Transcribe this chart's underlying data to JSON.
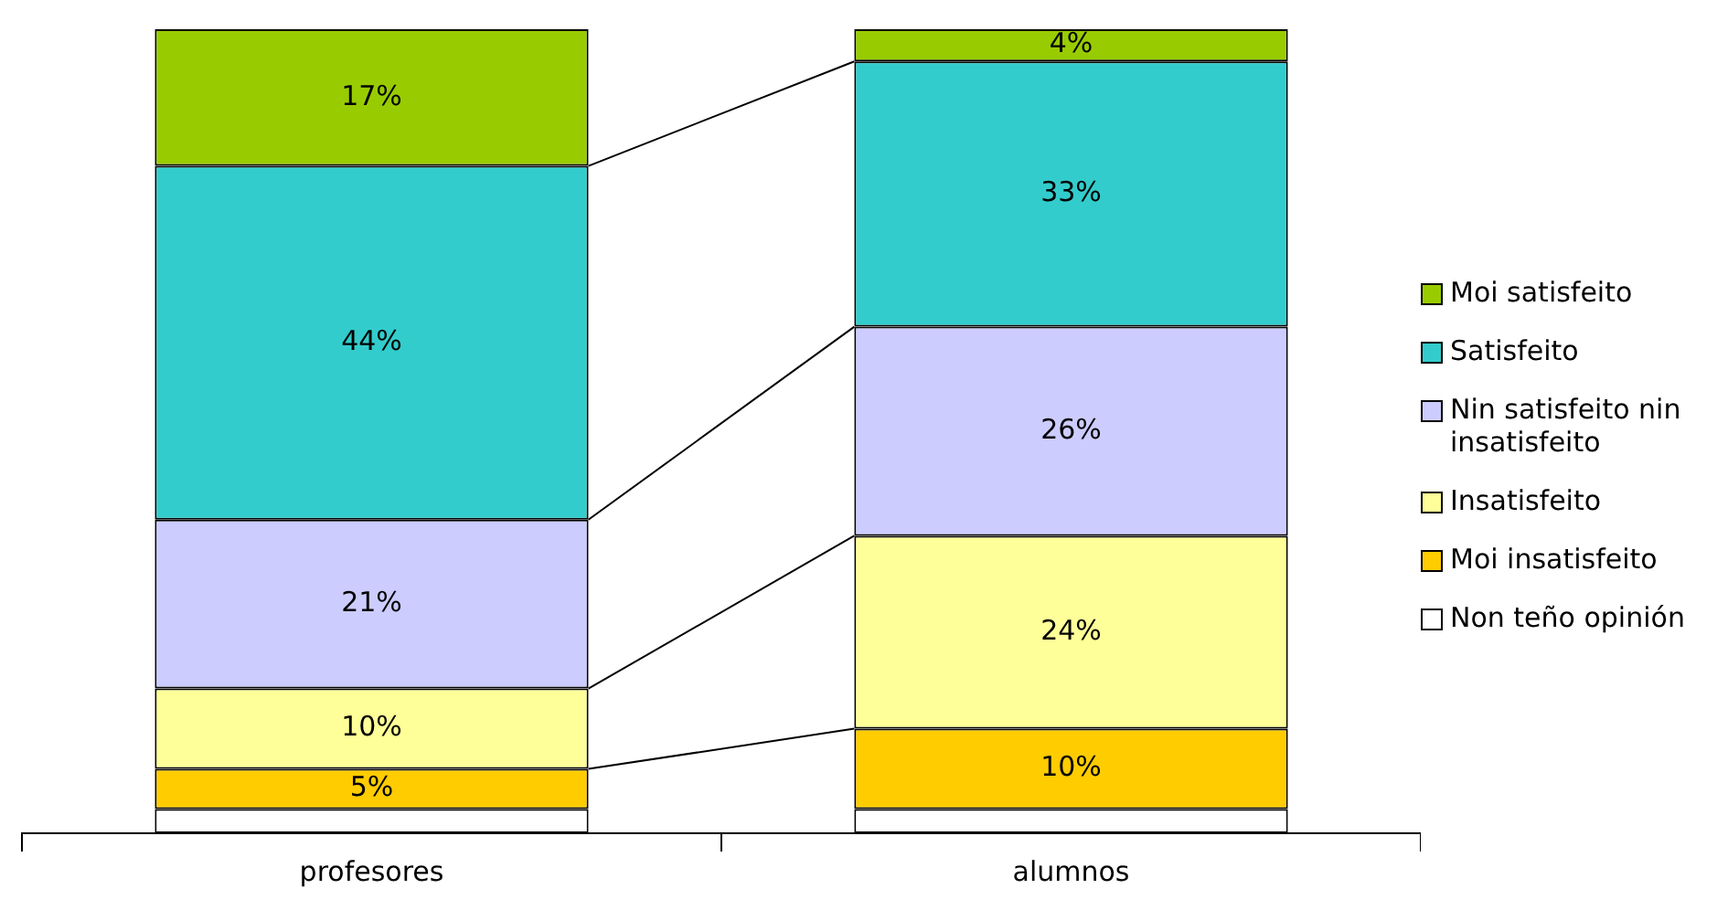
{
  "chart_data": {
    "type": "bar",
    "stacked": true,
    "categories": [
      "profesores",
      "alumnos"
    ],
    "series": [
      {
        "name": "Non teño opinión",
        "color": "#ffffff",
        "values": [
          3,
          3
        ],
        "value_labels": [
          null,
          null
        ]
      },
      {
        "name": "Moi insatisfeito",
        "color": "#ffcc00",
        "values": [
          5,
          10
        ],
        "value_labels": [
          "5%",
          "10%"
        ]
      },
      {
        "name": "Insatisfeito",
        "color": "#ffff99",
        "values": [
          10,
          24
        ],
        "value_labels": [
          "10%",
          "24%"
        ]
      },
      {
        "name": "Nin satisfeito nin insatisfeito",
        "color": "#ccccff",
        "values": [
          21,
          26
        ],
        "value_labels": [
          "21%",
          "26%"
        ]
      },
      {
        "name": "Satisfeito",
        "color": "#33cccc",
        "values": [
          44,
          33
        ],
        "value_labels": [
          "44%",
          "33%"
        ]
      },
      {
        "name": "Moi satisfeito",
        "color": "#99cc00",
        "values": [
          17,
          4
        ],
        "value_labels": [
          "17%",
          "4%"
        ]
      }
    ],
    "ylim": [
      0,
      100
    ],
    "tick_labels": "x",
    "grid": false,
    "legend": "right"
  }
}
